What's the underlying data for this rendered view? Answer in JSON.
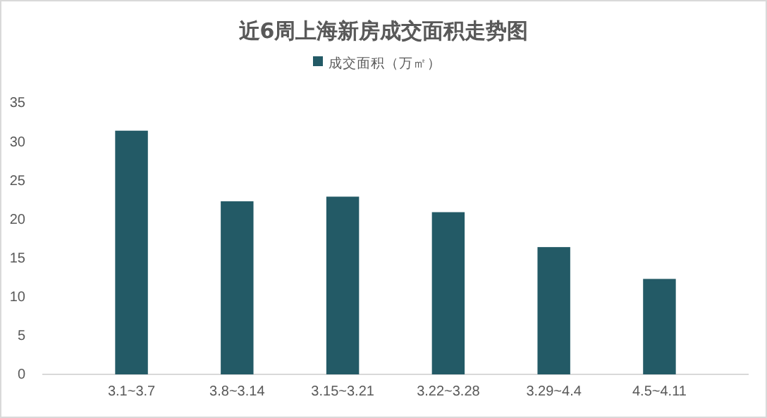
{
  "chart_data": {
    "type": "bar",
    "title": "近6周上海新房成交面积走势图",
    "categories": [
      "3.1~3.7",
      "3.8~3.14",
      "3.15~3.21",
      "3.22~3.28",
      "3.29~4.4",
      "4.5~4.11"
    ],
    "series": [
      {
        "name": "成交面积（万㎡）",
        "color": "#235a66",
        "values": [
          31.4,
          22.3,
          22.9,
          20.9,
          16.4,
          12.3
        ]
      }
    ],
    "ylim": [
      0,
      35
    ],
    "yticks": [
      0,
      5,
      10,
      15,
      20,
      25,
      30,
      35
    ],
    "grid": false,
    "legend": "top"
  }
}
